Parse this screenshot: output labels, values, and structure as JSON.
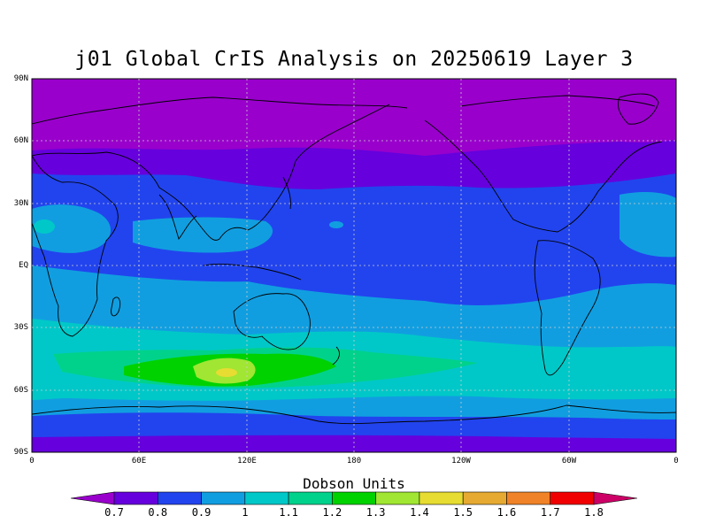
{
  "title": "j01 Global CrIS Analysis on 20250619 Layer 3",
  "lat_labels": [
    "90N",
    "60N",
    "30N",
    "EQ",
    "30S",
    "60S",
    "90S"
  ],
  "lon_labels": [
    "0",
    "60E",
    "120E",
    "180",
    "120W",
    "60W",
    "0"
  ],
  "colorbar": {
    "title": "Dobson Units",
    "labels": [
      "0.7",
      "0.8",
      "0.9",
      "1",
      "1.1",
      "1.2",
      "1.3",
      "1.4",
      "1.5",
      "1.6",
      "1.7",
      "1.8"
    ],
    "colors": [
      "#9900cc",
      "#6600dd",
      "#2244ee",
      "#119ee0",
      "#00c8c8",
      "#00d28c",
      "#00d200",
      "#a0e632",
      "#e6dc32",
      "#e6aa32",
      "#f08228",
      "#f00000",
      "#cc0066"
    ]
  }
}
